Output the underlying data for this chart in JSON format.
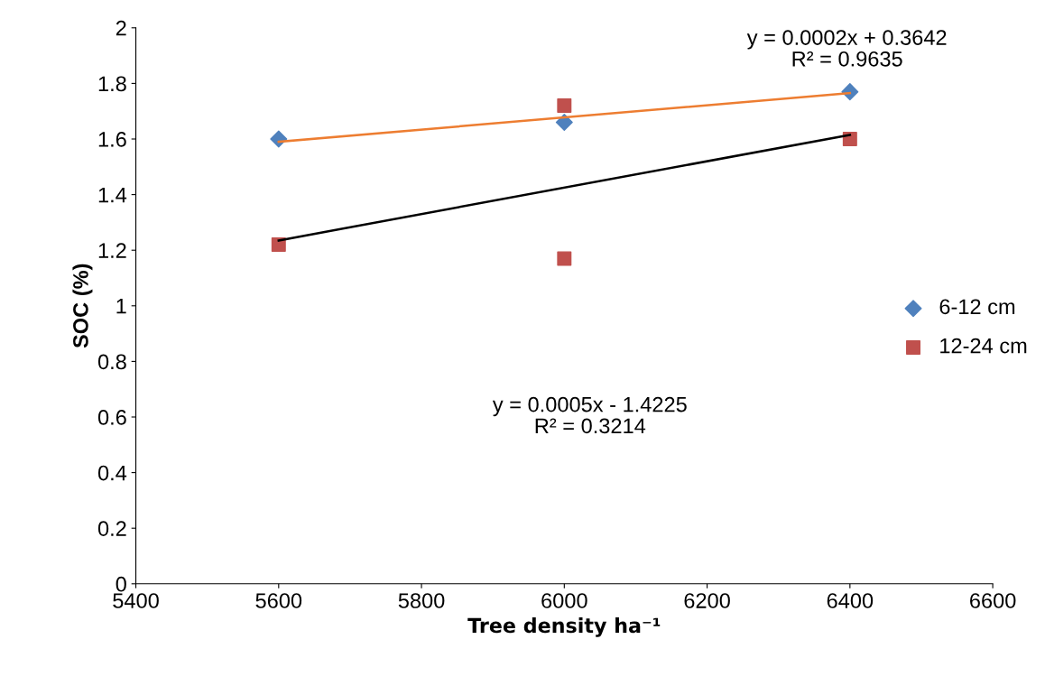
{
  "chart_data": {
    "type": "scatter",
    "xlabel": "Tree density ha⁻¹",
    "ylabel": "SOC (%)",
    "xlim": [
      5400,
      6600
    ],
    "xticks": [
      5400,
      5600,
      5800,
      6000,
      6200,
      6400,
      6600
    ],
    "ylim": [
      0,
      2
    ],
    "yticks": [
      0,
      0.2,
      0.4,
      0.6,
      0.8,
      1,
      1.2,
      1.4,
      1.6,
      1.8,
      2
    ],
    "grid": false,
    "legend": "right",
    "series": [
      {
        "name": "6-12 cm",
        "color": "#4f81bd",
        "marker": "diamond",
        "x": [
          5600,
          6000,
          6400
        ],
        "values": [
          1.6,
          1.66,
          1.77
        ]
      },
      {
        "name": "12-24 cm",
        "color": "#c0504d",
        "marker": "square",
        "x": [
          5600,
          6000,
          6000,
          6400
        ],
        "values": [
          1.22,
          1.72,
          1.17,
          1.6
        ]
      },
      {
        "type": "line",
        "color": "#ed7d31",
        "marker": "none",
        "x": [
          5600,
          6400
        ],
        "values": [
          1.59,
          1.765
        ]
      },
      {
        "type": "line",
        "color": "#000000",
        "marker": "none",
        "x": [
          5600,
          6400
        ],
        "values": [
          1.235,
          1.615
        ]
      }
    ],
    "annotations": [
      "y = 0.0002x + 0.3642\nR² = 0.9635",
      "y = 0.0005x - 1.4225\nR² = 0.3214"
    ]
  }
}
